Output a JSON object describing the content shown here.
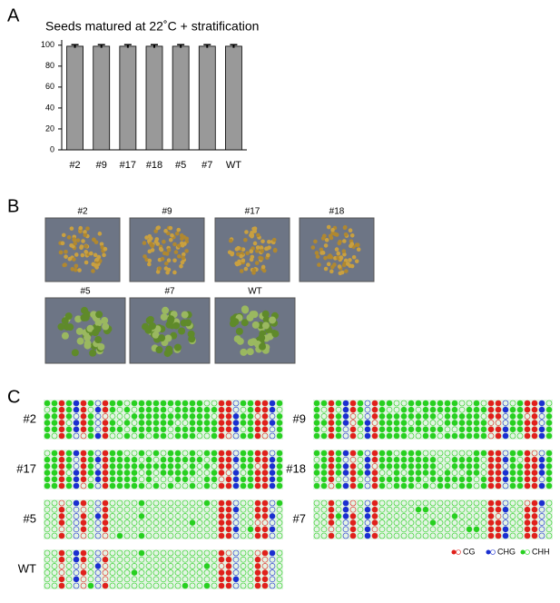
{
  "panel_labels": [
    "A",
    "B",
    "C"
  ],
  "chart_data": {
    "type": "bar",
    "title": "Seeds matured at 22˚C + stratification",
    "categories": [
      "#2",
      "#9",
      "#17",
      "#18",
      "#5",
      "#7",
      "WT"
    ],
    "values": [
      99,
      99,
      99,
      99,
      99,
      99,
      99
    ],
    "errors": [
      1.5,
      1.5,
      1.5,
      1.5,
      1.5,
      1.5,
      1.5
    ],
    "color": "#999999",
    "ylim": [
      0,
      105
    ],
    "yticks": [
      0,
      20,
      40,
      60,
      80,
      100
    ]
  },
  "photos": [
    "#2",
    "#9",
    "#17",
    "#18",
    "#5",
    "#7",
    "WT"
  ],
  "methylation": {
    "samples": [
      "#2",
      "#9",
      "#17",
      "#18",
      "#5",
      "#7",
      "WT"
    ],
    "legend": [
      "CG",
      "CHG",
      "CHH"
    ]
  }
}
